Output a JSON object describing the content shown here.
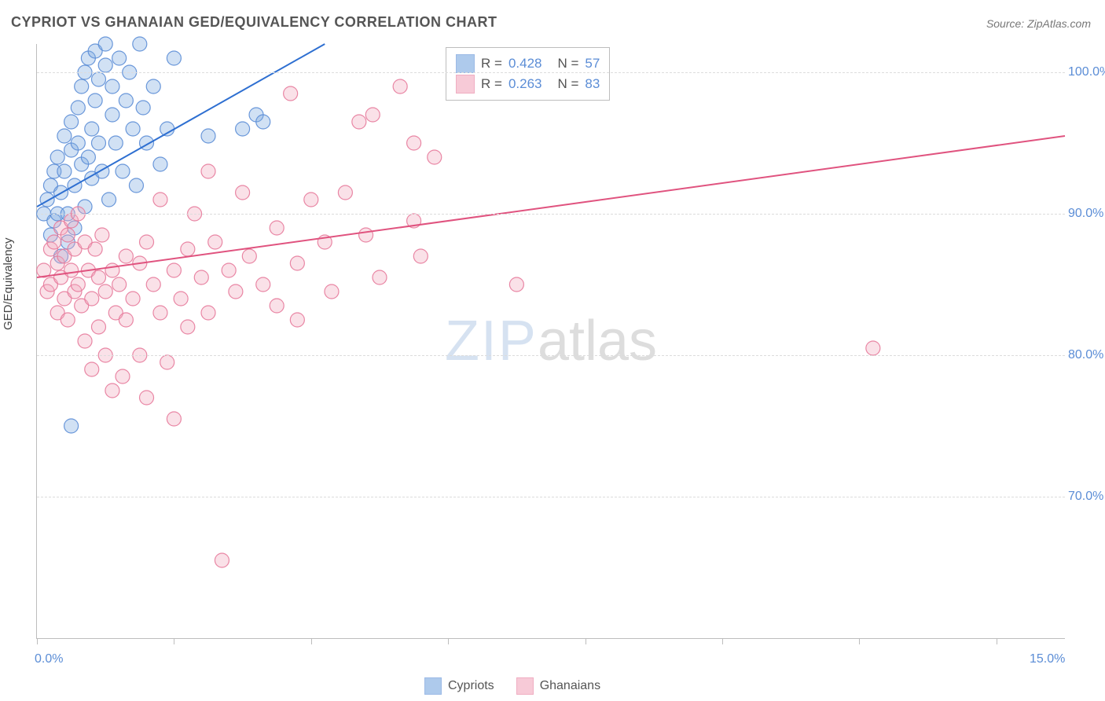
{
  "title": "CYPRIOT VS GHANAIAN GED/EQUIVALENCY CORRELATION CHART",
  "source_label": "Source: ZipAtlas.com",
  "ylabel": "GED/Equivalency",
  "watermark": {
    "part1": "ZIP",
    "part2": "atlas"
  },
  "chart": {
    "type": "scatter",
    "background_color": "#ffffff",
    "grid_color": "#dcdcdc",
    "axis_color": "#bdbdbd",
    "text_color": "#555555",
    "tick_label_color": "#5b8dd6",
    "xlim": [
      0.0,
      15.0
    ],
    "ylim": [
      60.0,
      102.0
    ],
    "y_gridlines": [
      70.0,
      80.0,
      90.0,
      100.0
    ],
    "y_tick_labels": [
      "70.0%",
      "80.0%",
      "90.0%",
      "100.0%"
    ],
    "x_ticks": [
      0.0,
      2.0,
      4.0,
      6.0,
      8.0,
      10.0,
      12.0,
      14.0
    ],
    "x_axis_labels": {
      "left": "0.0%",
      "right": "15.0%"
    },
    "marker_radius": 9,
    "marker_fill_opacity": 0.35,
    "marker_stroke_opacity": 0.9,
    "line_width": 2,
    "series": [
      {
        "name": "Cypriots",
        "color": "#7aa8e0",
        "stroke_color": "#5b8dd6",
        "line_color": "#2e6fd1",
        "R": 0.428,
        "N": 57,
        "regression": {
          "x1": 0.0,
          "y1": 90.5,
          "x2": 4.2,
          "y2": 102.0
        },
        "points": [
          [
            0.1,
            90.0
          ],
          [
            0.15,
            91.0
          ],
          [
            0.2,
            88.5
          ],
          [
            0.2,
            92.0
          ],
          [
            0.25,
            89.5
          ],
          [
            0.25,
            93.0
          ],
          [
            0.3,
            90.0
          ],
          [
            0.3,
            94.0
          ],
          [
            0.35,
            87.0
          ],
          [
            0.35,
            91.5
          ],
          [
            0.4,
            93.0
          ],
          [
            0.4,
            95.5
          ],
          [
            0.45,
            88.0
          ],
          [
            0.45,
            90.0
          ],
          [
            0.5,
            94.5
          ],
          [
            0.5,
            96.5
          ],
          [
            0.55,
            89.0
          ],
          [
            0.55,
            92.0
          ],
          [
            0.6,
            95.0
          ],
          [
            0.6,
            97.5
          ],
          [
            0.65,
            93.5
          ],
          [
            0.65,
            99.0
          ],
          [
            0.7,
            90.5
          ],
          [
            0.7,
            100.0
          ],
          [
            0.75,
            101.0
          ],
          [
            0.75,
            94.0
          ],
          [
            0.8,
            92.5
          ],
          [
            0.8,
            96.0
          ],
          [
            0.85,
            98.0
          ],
          [
            0.85,
            101.5
          ],
          [
            0.9,
            95.0
          ],
          [
            0.9,
            99.5
          ],
          [
            0.95,
            93.0
          ],
          [
            1.0,
            100.5
          ],
          [
            1.0,
            102.0
          ],
          [
            1.05,
            91.0
          ],
          [
            1.1,
            97.0
          ],
          [
            1.1,
            99.0
          ],
          [
            1.15,
            95.0
          ],
          [
            1.2,
            101.0
          ],
          [
            1.25,
            93.0
          ],
          [
            1.3,
            98.0
          ],
          [
            1.35,
            100.0
          ],
          [
            1.4,
            96.0
          ],
          [
            1.45,
            92.0
          ],
          [
            1.5,
            102.0
          ],
          [
            1.55,
            97.5
          ],
          [
            1.6,
            95.0
          ],
          [
            1.7,
            99.0
          ],
          [
            1.8,
            93.5
          ],
          [
            1.9,
            96.0
          ],
          [
            2.0,
            101.0
          ],
          [
            2.5,
            95.5
          ],
          [
            3.0,
            96.0
          ],
          [
            3.2,
            97.0
          ],
          [
            3.3,
            96.5
          ],
          [
            0.5,
            75.0
          ]
        ]
      },
      {
        "name": "Ghanaians",
        "color": "#f2a8bd",
        "stroke_color": "#e77a9b",
        "line_color": "#e0537f",
        "R": 0.263,
        "N": 83,
        "regression": {
          "x1": 0.0,
          "y1": 85.5,
          "x2": 15.0,
          "y2": 95.5
        },
        "points": [
          [
            0.1,
            86.0
          ],
          [
            0.15,
            84.5
          ],
          [
            0.2,
            87.5
          ],
          [
            0.2,
            85.0
          ],
          [
            0.25,
            88.0
          ],
          [
            0.3,
            83.0
          ],
          [
            0.3,
            86.5
          ],
          [
            0.35,
            89.0
          ],
          [
            0.35,
            85.5
          ],
          [
            0.4,
            87.0
          ],
          [
            0.4,
            84.0
          ],
          [
            0.45,
            88.5
          ],
          [
            0.45,
            82.5
          ],
          [
            0.5,
            86.0
          ],
          [
            0.5,
            89.5
          ],
          [
            0.55,
            84.5
          ],
          [
            0.55,
            87.5
          ],
          [
            0.6,
            85.0
          ],
          [
            0.6,
            90.0
          ],
          [
            0.65,
            83.5
          ],
          [
            0.7,
            88.0
          ],
          [
            0.7,
            81.0
          ],
          [
            0.75,
            86.0
          ],
          [
            0.8,
            84.0
          ],
          [
            0.8,
            79.0
          ],
          [
            0.85,
            87.5
          ],
          [
            0.9,
            82.0
          ],
          [
            0.9,
            85.5
          ],
          [
            0.95,
            88.5
          ],
          [
            1.0,
            80.0
          ],
          [
            1.0,
            84.5
          ],
          [
            1.1,
            86.0
          ],
          [
            1.1,
            77.5
          ],
          [
            1.15,
            83.0
          ],
          [
            1.2,
            85.0
          ],
          [
            1.25,
            78.5
          ],
          [
            1.3,
            87.0
          ],
          [
            1.3,
            82.5
          ],
          [
            1.4,
            84.0
          ],
          [
            1.5,
            86.5
          ],
          [
            1.5,
            80.0
          ],
          [
            1.6,
            88.0
          ],
          [
            1.6,
            77.0
          ],
          [
            1.7,
            85.0
          ],
          [
            1.8,
            83.0
          ],
          [
            1.8,
            91.0
          ],
          [
            1.9,
            79.5
          ],
          [
            2.0,
            86.0
          ],
          [
            2.0,
            75.5
          ],
          [
            2.1,
            84.0
          ],
          [
            2.2,
            87.5
          ],
          [
            2.2,
            82.0
          ],
          [
            2.3,
            90.0
          ],
          [
            2.4,
            85.5
          ],
          [
            2.5,
            83.0
          ],
          [
            2.5,
            93.0
          ],
          [
            2.6,
            88.0
          ],
          [
            2.7,
            65.5
          ],
          [
            2.8,
            86.0
          ],
          [
            2.9,
            84.5
          ],
          [
            3.0,
            91.5
          ],
          [
            3.1,
            87.0
          ],
          [
            3.3,
            85.0
          ],
          [
            3.5,
            89.0
          ],
          [
            3.5,
            83.5
          ],
          [
            3.7,
            98.5
          ],
          [
            3.8,
            86.5
          ],
          [
            3.8,
            82.5
          ],
          [
            4.0,
            91.0
          ],
          [
            4.2,
            88.0
          ],
          [
            4.3,
            84.5
          ],
          [
            4.5,
            91.5
          ],
          [
            4.7,
            96.5
          ],
          [
            4.8,
            88.5
          ],
          [
            4.9,
            97.0
          ],
          [
            5.0,
            85.5
          ],
          [
            5.3,
            99.0
          ],
          [
            5.5,
            89.5
          ],
          [
            5.5,
            95.0
          ],
          [
            5.6,
            87.0
          ],
          [
            5.8,
            94.0
          ],
          [
            7.0,
            85.0
          ],
          [
            12.2,
            80.5
          ]
        ]
      }
    ],
    "legend_top": {
      "rows": [
        {
          "swatch": 0,
          "r_label": "R =",
          "r_val": "0.428",
          "n_label": "N =",
          "n_val": "57"
        },
        {
          "swatch": 1,
          "r_label": "R =",
          "r_val": "0.263",
          "n_label": "N =",
          "n_val": "83"
        }
      ]
    },
    "legend_bottom": {
      "items": [
        {
          "swatch": 0,
          "label": "Cypriots"
        },
        {
          "swatch": 1,
          "label": "Ghanaians"
        }
      ]
    }
  }
}
